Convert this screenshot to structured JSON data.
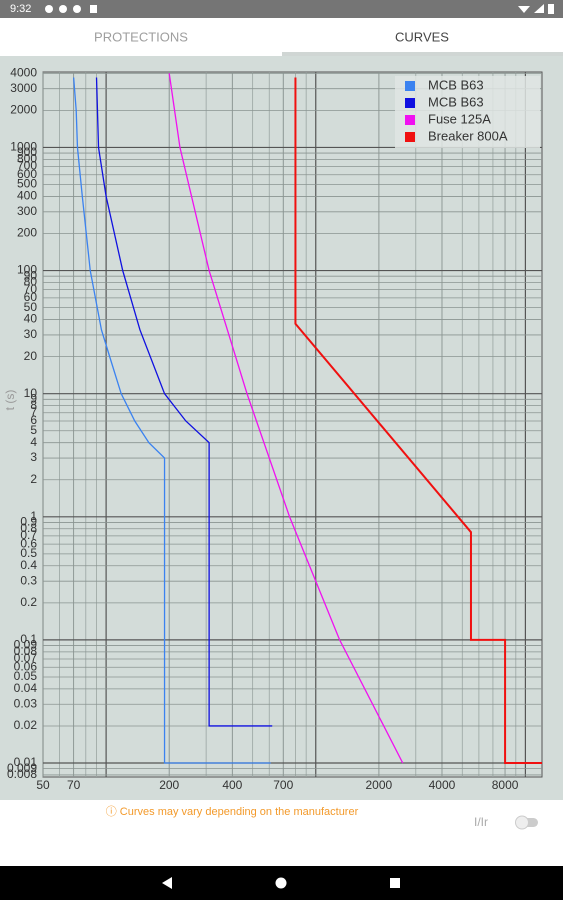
{
  "status_bar": {
    "time": "9:32"
  },
  "tabs": [
    "PROTECTIONS",
    "CURVES"
  ],
  "chart_data": {
    "type": "line",
    "ylabel": "t (s)",
    "xscale": "log",
    "yscale": "log",
    "grid": true,
    "x_minor_grid": true,
    "legend": "upper-right",
    "xlim": [
      50,
      12000
    ],
    "ylim": [
      0.0077,
      4100
    ],
    "xticks": [
      50,
      70,
      200,
      400,
      700,
      2000,
      4000,
      8000
    ],
    "yticks": [
      0.008,
      0.009,
      0.01,
      0.02,
      0.03,
      0.04,
      0.05,
      0.06,
      0.07,
      0.08,
      0.09,
      0.1,
      0.2,
      0.3,
      0.4,
      0.5,
      0.6,
      0.7,
      0.8,
      0.9,
      1,
      2,
      3,
      4,
      5,
      6,
      7,
      8,
      9,
      10,
      20,
      30,
      40,
      50,
      60,
      70,
      80,
      90,
      100,
      200,
      300,
      400,
      500,
      600,
      700,
      800,
      900,
      1000,
      2000,
      3000,
      4000
    ],
    "series": [
      {
        "name": "MCB B63",
        "color": "#3b82f0",
        "x": [
          70,
          72,
          73,
          77,
          84,
          95,
          106,
          118,
          137,
          160,
          190,
          190,
          610
        ],
        "values": [
          3700,
          2000,
          1000,
          400,
          100,
          33,
          18,
          10,
          6,
          4,
          3,
          0.01,
          0.01
        ]
      },
      {
        "name": "MCB B63",
        "color": "#1010e0",
        "x": [
          90,
          92,
          100,
          120,
          145,
          190,
          240,
          310,
          310,
          620
        ],
        "values": [
          3700,
          1000,
          400,
          100,
          33,
          10,
          6,
          4,
          0.02,
          0.02
        ]
      },
      {
        "name": "Fuse 125A",
        "color": "#f010f0",
        "x": [
          200,
          225,
          310,
          470,
          750,
          1300,
          2600
        ],
        "values": [
          4000,
          1000,
          100,
          10,
          1,
          0.1,
          0.01
        ]
      },
      {
        "name": "Breaker 800A",
        "color": "#f01010",
        "x": [
          800,
          800,
          5500,
          5500,
          8000,
          8000,
          12000
        ],
        "values": [
          3700,
          37,
          0.75,
          0.1,
          0.1,
          0.01,
          0.01
        ]
      }
    ]
  },
  "footer": {
    "note": "ⓘ Curves may vary depending on the manufacturer",
    "toggle_label": "I/Ir"
  }
}
